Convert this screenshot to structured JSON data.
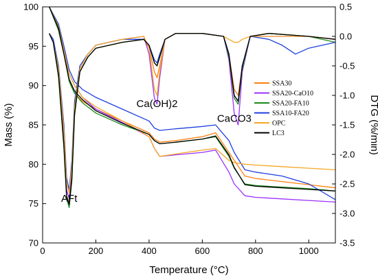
{
  "chart_data": {
    "type": "line",
    "xlabel": "Temperature (°C)",
    "ylabel_left": "Mass (%)",
    "ylabel_right": "DTG (%/min)",
    "xlim": [
      0,
      1100
    ],
    "ylim_left": [
      70,
      100
    ],
    "ylim_right": [
      -3.5,
      0.5
    ],
    "x_ticks": [
      "0",
      "200",
      "400",
      "600",
      "800",
      "1000"
    ],
    "y_left_ticks": [
      "70",
      "75",
      "80",
      "85",
      "90",
      "95",
      "100"
    ],
    "y_right_ticks": [
      "-3.5",
      "-3.0",
      "-2.5",
      "-2.0",
      "-1.5",
      "-1.0",
      "-0.5",
      "0.0",
      "0.5"
    ],
    "grid": false,
    "legend_position": "right-middle",
    "annotations": [
      {
        "text": "AFt",
        "x": 100,
        "y": -2.8,
        "axis": "right"
      },
      {
        "text": "Ca(OH)2",
        "x": 430,
        "y": -1.2,
        "axis": "right"
      },
      {
        "text": "CaCO3",
        "x": 720,
        "y": -1.45,
        "axis": "right"
      }
    ],
    "series": [
      {
        "name": "SSA30",
        "color": "#ff7f0e",
        "mass": {
          "x": [
            25,
            60,
            80,
            100,
            120,
            150,
            200,
            300,
            400,
            420,
            440,
            500,
            600,
            650,
            700,
            720,
            760,
            800,
            900,
            1000,
            1100
          ],
          "y": [
            100,
            97.5,
            94,
            90.5,
            89,
            88,
            87,
            85.5,
            84,
            83.2,
            82.8,
            83,
            83.5,
            84,
            81.5,
            80.5,
            78.5,
            78.2,
            77.8,
            77.4,
            77.0
          ]
        },
        "dtg": {
          "x": [
            25,
            40,
            60,
            80,
            90,
            100,
            110,
            120,
            140,
            170,
            200,
            300,
            380,
            400,
            420,
            430,
            440,
            460,
            500,
            600,
            680,
            700,
            720,
            735,
            750,
            780,
            850,
            1000,
            1100
          ],
          "y": [
            0.05,
            -0.1,
            -0.6,
            -1.8,
            -2.7,
            -2.85,
            -2.4,
            -1.3,
            -0.6,
            -0.35,
            -0.2,
            -0.1,
            -0.05,
            -0.2,
            -0.6,
            -0.7,
            -0.5,
            -0.05,
            0.05,
            0.05,
            0.0,
            -0.3,
            -0.9,
            -1.0,
            -0.5,
            0.0,
            0.05,
            0.0,
            -0.05
          ]
        }
      },
      {
        "name": "SSA20-CaO10",
        "color": "#9b30ff",
        "mass": {
          "x": [
            25,
            60,
            80,
            100,
            120,
            150,
            200,
            300,
            400,
            420,
            440,
            500,
            600,
            650,
            700,
            720,
            760,
            800,
            900,
            1000,
            1100
          ],
          "y": [
            100,
            97,
            94,
            91.5,
            90,
            88.5,
            87,
            85.3,
            83.5,
            82,
            81,
            81.2,
            81.5,
            81.8,
            79,
            77.5,
            76,
            75.8,
            75.6,
            75.4,
            75.2
          ]
        },
        "dtg": {
          "x": [
            25,
            40,
            60,
            80,
            90,
            100,
            110,
            120,
            140,
            170,
            200,
            300,
            380,
            400,
            420,
            430,
            440,
            460,
            500,
            600,
            680,
            700,
            720,
            735,
            750,
            780,
            850,
            1000,
            1100
          ],
          "y": [
            0.05,
            -0.1,
            -0.6,
            -1.7,
            -2.6,
            -2.75,
            -2.3,
            -1.2,
            -0.55,
            -0.3,
            -0.15,
            -0.05,
            0.0,
            -0.3,
            -1.05,
            -1.15,
            -0.7,
            -0.05,
            0.05,
            0.05,
            0.0,
            -0.4,
            -1.3,
            -1.5,
            -0.6,
            0.0,
            0.0,
            0.0,
            -0.05
          ]
        }
      },
      {
        "name": "SSA20-FA10",
        "color": "#1a8a1a",
        "mass": {
          "x": [
            25,
            60,
            80,
            100,
            120,
            150,
            200,
            300,
            400,
            420,
            440,
            500,
            600,
            650,
            700,
            720,
            760,
            800,
            900,
            1000,
            1100
          ],
          "y": [
            100,
            97,
            94,
            90.5,
            89,
            87.8,
            86.5,
            85,
            83.8,
            83,
            82.6,
            82.8,
            83.2,
            83.5,
            81,
            79.5,
            77.5,
            77.3,
            77.1,
            76.9,
            76.6
          ]
        },
        "dtg": {
          "x": [
            25,
            40,
            60,
            80,
            90,
            100,
            110,
            120,
            140,
            170,
            200,
            300,
            380,
            400,
            420,
            430,
            440,
            460,
            500,
            600,
            680,
            700,
            720,
            735,
            750,
            780,
            850,
            1000,
            1100
          ],
          "y": [
            0.05,
            -0.1,
            -0.7,
            -1.9,
            -2.75,
            -2.9,
            -2.45,
            -1.35,
            -0.6,
            -0.35,
            -0.2,
            -0.1,
            -0.05,
            -0.15,
            -0.45,
            -0.5,
            -0.35,
            -0.05,
            0.05,
            0.05,
            0.0,
            -0.35,
            -1.05,
            -1.15,
            -0.55,
            0.0,
            0.05,
            0.0,
            -0.1
          ]
        }
      },
      {
        "name": "SSA10-FA20",
        "color": "#1f3fe0",
        "mass": {
          "x": [
            25,
            60,
            80,
            100,
            120,
            150,
            200,
            300,
            400,
            420,
            440,
            500,
            600,
            650,
            700,
            720,
            760,
            800,
            900,
            1000,
            1100
          ],
          "y": [
            100,
            97.8,
            95,
            92,
            90.5,
            89.5,
            88.5,
            87,
            85.5,
            84.6,
            84.3,
            84.5,
            84.8,
            85,
            83,
            81.5,
            79.3,
            79,
            78.5,
            77.5,
            75.5
          ]
        },
        "dtg": {
          "x": [
            25,
            40,
            60,
            80,
            90,
            100,
            110,
            120,
            140,
            170,
            200,
            300,
            380,
            400,
            420,
            430,
            440,
            460,
            500,
            600,
            680,
            700,
            720,
            735,
            750,
            780,
            850,
            900,
            950,
            1000,
            1100
          ],
          "y": [
            0.05,
            -0.05,
            -0.5,
            -1.5,
            -2.4,
            -2.6,
            -2.1,
            -1.1,
            -0.5,
            -0.3,
            -0.15,
            -0.05,
            -0.05,
            -0.15,
            -0.4,
            -0.45,
            -0.3,
            -0.05,
            0.05,
            0.05,
            0.0,
            -0.3,
            -1.0,
            -1.1,
            -0.5,
            0.0,
            -0.05,
            -0.15,
            -0.3,
            -0.2,
            -0.1
          ]
        }
      },
      {
        "name": "OPC",
        "color": "#f5a623",
        "mass": {
          "x": [
            25,
            60,
            80,
            100,
            120,
            150,
            200,
            300,
            400,
            420,
            440,
            500,
            600,
            650,
            700,
            720,
            760,
            800,
            900,
            1000,
            1100
          ],
          "y": [
            100,
            97.5,
            94.5,
            91.5,
            90,
            88.5,
            87.3,
            85.5,
            83.5,
            82,
            81,
            81.3,
            81.8,
            82,
            80.5,
            80.2,
            80,
            79.9,
            79.7,
            79.5,
            79.3
          ]
        },
        "dtg": {
          "x": [
            25,
            40,
            60,
            80,
            90,
            100,
            110,
            120,
            140,
            170,
            200,
            300,
            380,
            400,
            420,
            430,
            440,
            460,
            500,
            600,
            680,
            700,
            720,
            735,
            750,
            780,
            850,
            1000,
            1100
          ],
          "y": [
            0.05,
            -0.1,
            -0.55,
            -1.6,
            -2.5,
            -2.65,
            -2.2,
            -1.2,
            -0.55,
            -0.3,
            -0.15,
            -0.05,
            0.0,
            -0.2,
            -0.9,
            -1.0,
            -0.6,
            -0.05,
            0.05,
            0.05,
            0.0,
            -0.05,
            -0.1,
            -0.1,
            -0.05,
            0.0,
            0.0,
            0.0,
            -0.05
          ]
        }
      },
      {
        "name": "LC3",
        "color": "#000000",
        "mass": {
          "x": [
            25,
            60,
            80,
            100,
            120,
            150,
            200,
            300,
            400,
            420,
            440,
            500,
            600,
            650,
            700,
            720,
            760,
            800,
            900,
            1000,
            1100
          ],
          "y": [
            100,
            97.3,
            94,
            90.8,
            89.3,
            88.2,
            86.8,
            85.2,
            83.8,
            83,
            82.6,
            82.8,
            83.2,
            83.6,
            81.2,
            79.6,
            77.4,
            77.2,
            77,
            76.8,
            76.6
          ]
        },
        "dtg": {
          "x": [
            25,
            40,
            60,
            80,
            90,
            100,
            110,
            120,
            140,
            170,
            200,
            300,
            380,
            400,
            420,
            430,
            440,
            460,
            500,
            600,
            680,
            700,
            720,
            735,
            750,
            780,
            850,
            1000,
            1100
          ],
          "y": [
            0.05,
            -0.1,
            -0.65,
            -1.85,
            -2.7,
            -2.85,
            -2.4,
            -1.3,
            -0.6,
            -0.35,
            -0.2,
            -0.1,
            -0.05,
            -0.15,
            -0.45,
            -0.5,
            -0.35,
            -0.05,
            0.05,
            0.05,
            0.0,
            -0.3,
            -1.0,
            -1.1,
            -0.5,
            0.0,
            0.05,
            0.0,
            -0.05
          ]
        }
      }
    ]
  }
}
